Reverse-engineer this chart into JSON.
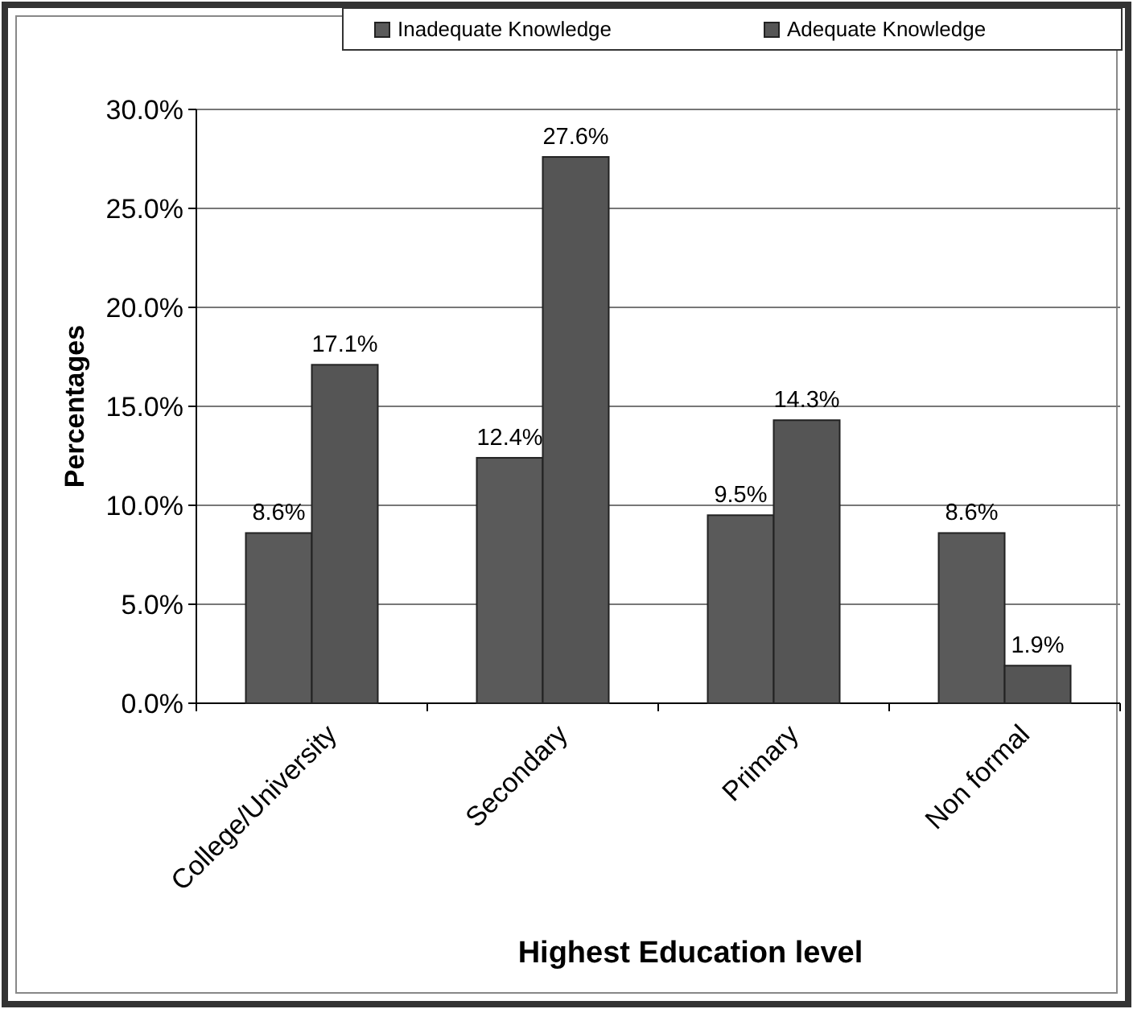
{
  "chart_data": {
    "type": "bar",
    "xlabel": "Highest Education level",
    "ylabel": "Percentages",
    "categories": [
      "College/University",
      "Secondary",
      "Primary",
      "Non formal"
    ],
    "series": [
      {
        "name": "Inadequate Knowledge",
        "color": "#5a5a5a",
        "values": [
          8.6,
          12.4,
          9.5,
          8.6
        ],
        "value_labels": [
          "8.6%",
          "12.4%",
          "9.5%",
          "8.6%"
        ]
      },
      {
        "name": "Adequate Knowledge",
        "color": "#555555",
        "values": [
          17.1,
          27.6,
          14.3,
          1.9
        ],
        "value_labels": [
          "17.1%",
          "27.6%",
          "14.3%",
          "1.9%"
        ]
      }
    ],
    "ylim": [
      0,
      30
    ],
    "yticks": [
      {
        "value": 0,
        "label": "0.0%"
      },
      {
        "value": 5,
        "label": "5.0%"
      },
      {
        "value": 10,
        "label": "10.0%"
      },
      {
        "value": 15,
        "label": "15.0%"
      },
      {
        "value": 20,
        "label": "20.0%"
      },
      {
        "value": 25,
        "label": "25.0%"
      },
      {
        "value": 30,
        "label": "30.0%"
      }
    ],
    "grid": "y",
    "legend": "top right"
  }
}
